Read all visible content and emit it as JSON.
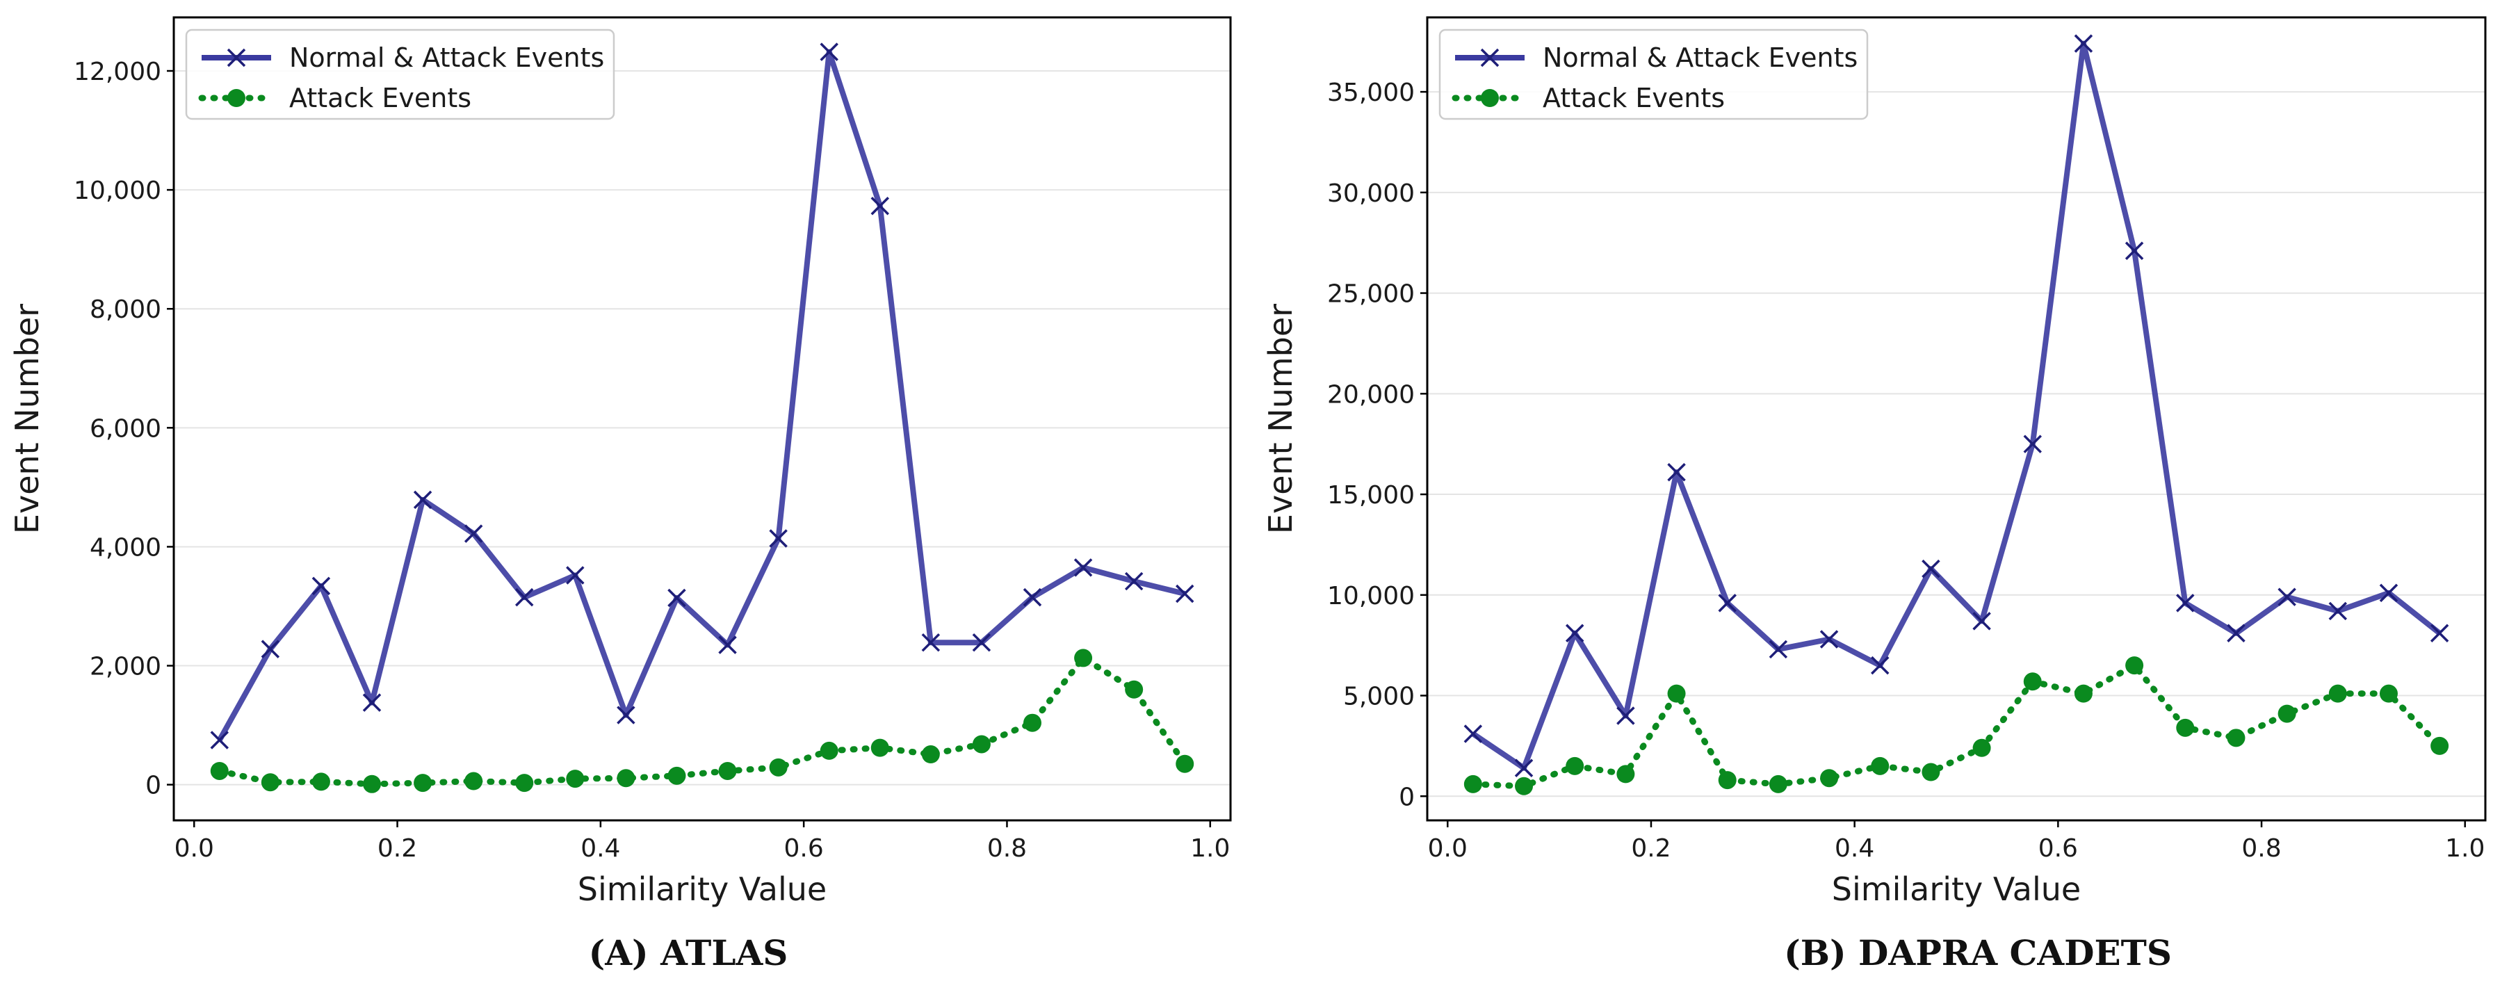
{
  "chart_data": [
    {
      "type": "line",
      "caption": "(A) ATLAS",
      "xlabel": "Similarity Value",
      "ylabel": "Event Number",
      "xlim": [
        -0.02,
        1.02
      ],
      "ylim": [
        -600,
        12900
      ],
      "xticks": [
        0.0,
        0.2,
        0.4,
        0.6,
        0.8,
        1.0
      ],
      "xtick_labels": [
        "0.0",
        "0.2",
        "0.4",
        "0.6",
        "0.8",
        "1.0"
      ],
      "yticks": [
        0,
        2000,
        4000,
        6000,
        8000,
        10000,
        12000
      ],
      "ytick_labels": [
        "0",
        "2,000",
        "4,000",
        "6,000",
        "8,000",
        "10,000",
        "12,000"
      ],
      "grid": "horizontal",
      "legend_position": "top-left",
      "x": [
        0.025,
        0.075,
        0.125,
        0.175,
        0.225,
        0.275,
        0.325,
        0.375,
        0.425,
        0.475,
        0.525,
        0.575,
        0.625,
        0.675,
        0.725,
        0.775,
        0.825,
        0.875,
        0.925,
        0.975
      ],
      "series": [
        {
          "name": "Normal & Attack Events",
          "style": "solid-x",
          "color": "#3a3aa0",
          "values": [
            750,
            2280,
            3340,
            1380,
            4790,
            4220,
            3150,
            3520,
            1170,
            3140,
            2350,
            4140,
            12320,
            9730,
            2390,
            2390,
            3150,
            3650,
            3420,
            3210
          ]
        },
        {
          "name": "Attack Events",
          "style": "dotted-circle",
          "color": "#0a8a1f",
          "values": [
            230,
            40,
            50,
            10,
            30,
            60,
            30,
            100,
            110,
            150,
            230,
            290,
            570,
            620,
            510,
            680,
            1040,
            2130,
            1600,
            350
          ]
        }
      ]
    },
    {
      "type": "line",
      "caption": "(B) DAPRA CADETS",
      "xlabel": "Similarity Value",
      "ylabel": "Event Number",
      "xlim": [
        -0.02,
        1.02
      ],
      "ylim": [
        -1200,
        38700
      ],
      "xticks": [
        0.0,
        0.2,
        0.4,
        0.6,
        0.8,
        1.0
      ],
      "xtick_labels": [
        "0.0",
        "0.2",
        "0.4",
        "0.6",
        "0.8",
        "1.0"
      ],
      "yticks": [
        0,
        5000,
        10000,
        15000,
        20000,
        25000,
        30000,
        35000
      ],
      "ytick_labels": [
        "0",
        "5,000",
        "10,000",
        "15,000",
        "20,000",
        "25,000",
        "30,000",
        "35,000"
      ],
      "grid": "horizontal",
      "legend_position": "top-left",
      "x": [
        0.025,
        0.075,
        0.125,
        0.175,
        0.225,
        0.275,
        0.325,
        0.375,
        0.425,
        0.475,
        0.525,
        0.575,
        0.625,
        0.675,
        0.725,
        0.775,
        0.825,
        0.875,
        0.925,
        0.975
      ],
      "series": [
        {
          "name": "Normal & Attack Events",
          "style": "solid-x",
          "color": "#3a3aa0",
          "values": [
            3100,
            1400,
            8100,
            4000,
            16100,
            9600,
            7300,
            7800,
            6500,
            11300,
            8700,
            17500,
            37400,
            27100,
            9600,
            8100,
            9900,
            9200,
            10100,
            8100
          ]
        },
        {
          "name": "Attack Events",
          "style": "dotted-circle",
          "color": "#0a8a1f",
          "values": [
            600,
            500,
            1500,
            1100,
            5100,
            800,
            600,
            900,
            1500,
            1200,
            2400,
            5700,
            5100,
            6500,
            3400,
            2900,
            4100,
            5100,
            5100,
            2500
          ]
        }
      ]
    }
  ]
}
